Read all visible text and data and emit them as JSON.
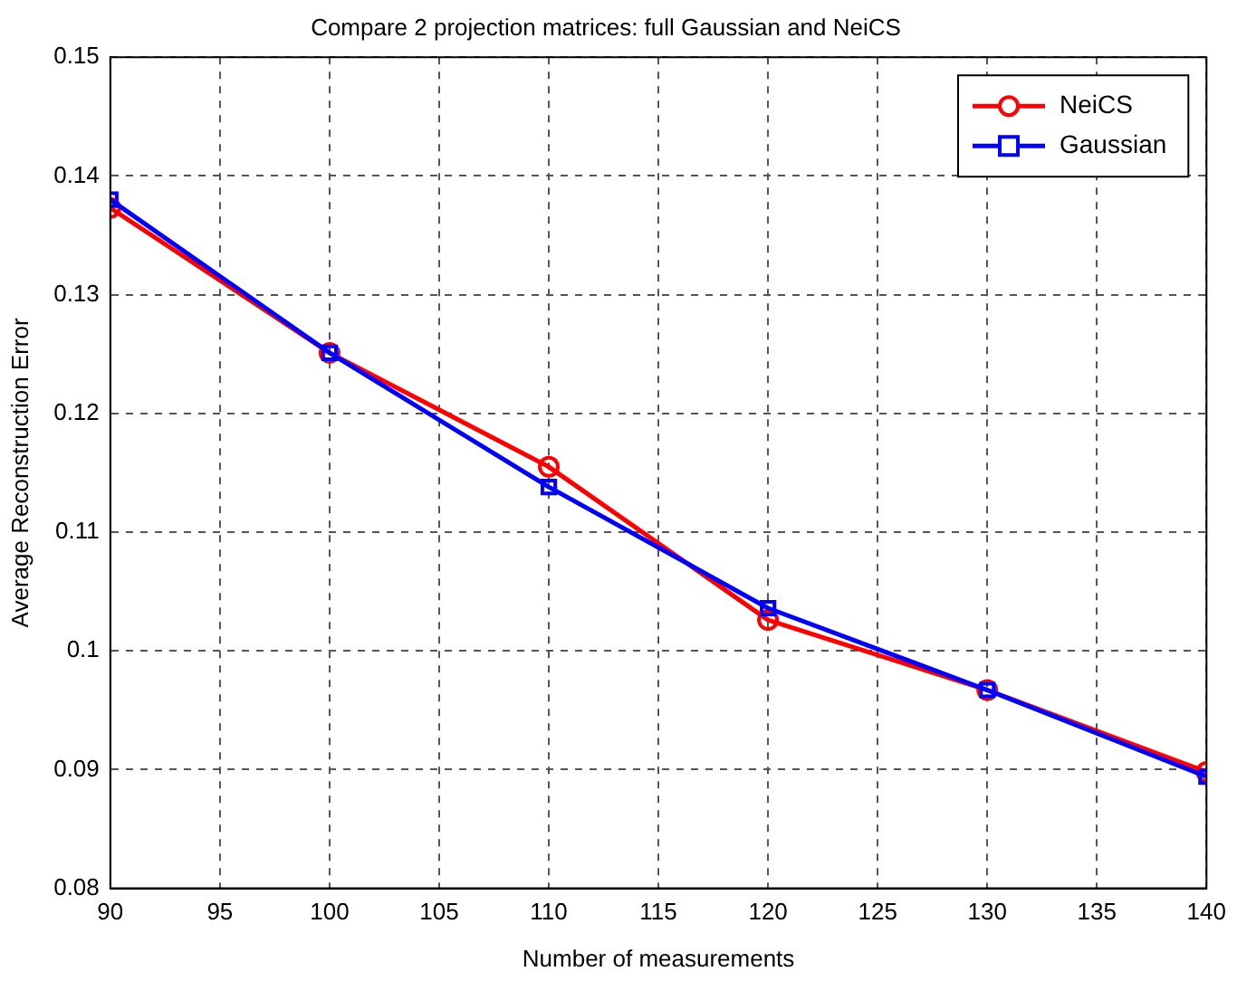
{
  "chart_data": {
    "type": "line",
    "title": "Compare 2 projection matrices: full Gaussian and NeiCS",
    "xlabel": "Number of measurements",
    "ylabel": "Average Reconstruction Error",
    "x": [
      90,
      100,
      110,
      120,
      130,
      140
    ],
    "series": [
      {
        "name": "NeiCS",
        "color": "#ff0000",
        "marker": "circle",
        "values": [
          0.1373,
          0.1251,
          0.1155,
          0.1026,
          0.0967,
          0.0898
        ]
      },
      {
        "name": "Gaussian",
        "color": "#0000ff",
        "marker": "square",
        "values": [
          0.138,
          0.1251,
          0.1138,
          0.1036,
          0.0967,
          0.0894
        ]
      }
    ],
    "xlim": [
      90,
      140
    ],
    "xticks": [
      90,
      95,
      100,
      105,
      110,
      115,
      120,
      125,
      130,
      135,
      140
    ],
    "ylim": [
      0.08,
      0.15
    ],
    "yticks": [
      0.08,
      0.09,
      0.1,
      0.11,
      0.12,
      0.13,
      0.14,
      0.15
    ],
    "grid": true,
    "legend": "top right",
    "line_style": "solid"
  }
}
